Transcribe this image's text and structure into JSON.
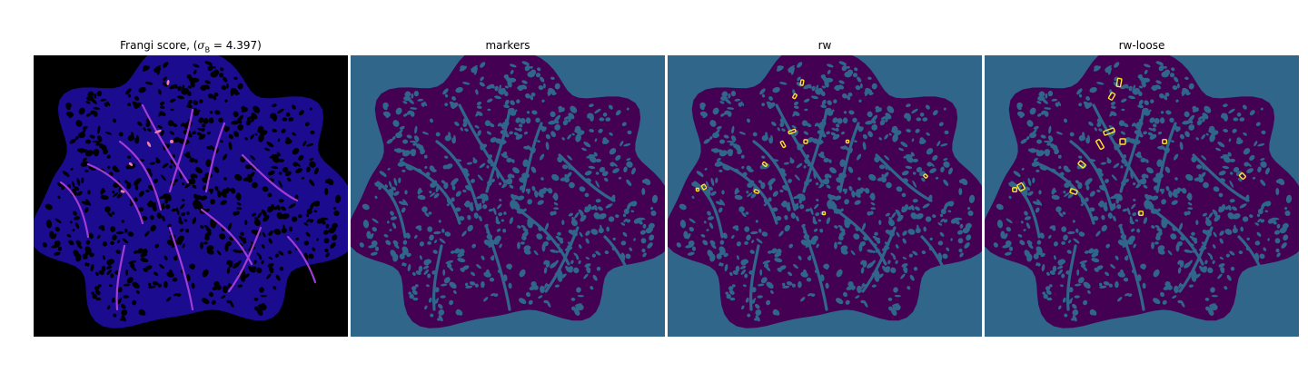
{
  "panels": [
    {
      "id": "frangi",
      "title_prefix": "Frangi score, (",
      "title_sigma": "σ",
      "title_sub": "B",
      "title_suffix": " = 4.397)",
      "background": "#000000",
      "blob_fill": "#1a0b8f",
      "pore_fill": "#000000",
      "vessel_color": "#a23bd6",
      "hot_color": "#f07aa8"
    },
    {
      "id": "markers",
      "title": "markers",
      "background": "#2f6689",
      "blob_fill": "#440154",
      "pore_fill": "#2f6689",
      "vessel_color": "#2f6689"
    },
    {
      "id": "rw",
      "title": "rw",
      "background": "#2f6689",
      "blob_fill": "#440154",
      "pore_fill": "#2f6689",
      "vessel_color": "#2f6689",
      "highlight": "#fde725"
    },
    {
      "id": "rw-loose",
      "title": "rw-loose",
      "background": "#2f6689",
      "blob_fill": "#440154",
      "pore_fill": "#2f6689",
      "vessel_color": "#2f6689",
      "highlight": "#fde725"
    }
  ]
}
